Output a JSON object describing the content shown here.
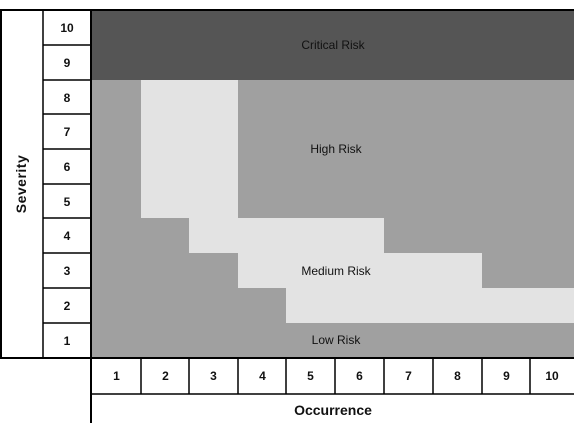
{
  "matrix": {
    "y_axis_title": "Severity",
    "x_axis_title": "Occurrence",
    "severity_levels": [
      "10",
      "9",
      "8",
      "7",
      "6",
      "5",
      "4",
      "3",
      "2",
      "1"
    ],
    "occurrence_levels": [
      "1",
      "2",
      "3",
      "4",
      "5",
      "6",
      "7",
      "8",
      "9",
      "10"
    ],
    "zones": {
      "critical": {
        "label": "Critical Risk",
        "color": "#555555"
      },
      "high": {
        "label": "High Risk",
        "color": "#a0a0a0"
      },
      "medium": {
        "label": "Medium Risk",
        "color": "#e3e3e3"
      },
      "low": {
        "label": "Low Risk",
        "color": "#a0a0a0"
      }
    }
  }
}
